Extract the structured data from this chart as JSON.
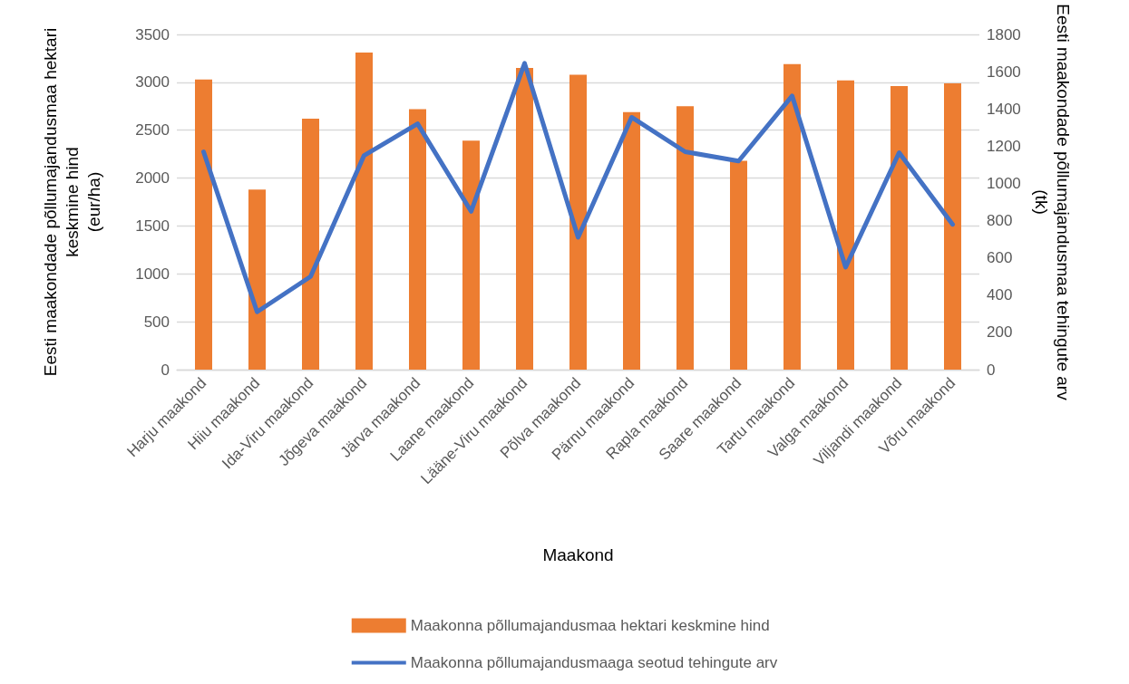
{
  "chart_data": {
    "type": "bar",
    "xlabel": "Maakond",
    "ylabel": "Eesti maakondade põllumajandusmaa hektari\nkeskmine hind\n(eur/ha)",
    "y2label": "Eesti maakondade põllumajandusmaa tehingute arv\n(tk)",
    "categories": [
      "Harju maakond",
      "Hiiu maakond",
      "Ida-Viru maakond",
      "Jõgeva maakond",
      "Järva maakond",
      "Laane maakond",
      "Lääne-Viru maakond",
      "Põlva maakond",
      "Pärnu maakond",
      "Rapla maakond",
      "Saare maakond",
      "Tartu maakond",
      "Valga maakond",
      "Viljandi maakond",
      "Võru maakond"
    ],
    "series": [
      {
        "name": "Maakonna põllumajandusmaa hektari keskmine hind",
        "color": "#ed7d31",
        "values": [
          3030,
          1880,
          2620,
          3310,
          2720,
          2390,
          3150,
          3080,
          2690,
          2750,
          2180,
          3190,
          3020,
          2960,
          2990
        ]
      },
      {
        "name": "Maakonna põllumajandusmaaga seotud tehingute arv",
        "type": "line",
        "axis": "y2",
        "color": "#4472c4",
        "values": [
          1170,
          310,
          500,
          1150,
          1320,
          850,
          1645,
          710,
          1355,
          1170,
          1120,
          1470,
          550,
          1165,
          780
        ]
      }
    ],
    "ylim": [
      0,
      3500
    ],
    "yticks": [
      0,
      500,
      1000,
      1500,
      2000,
      2500,
      3000,
      3500
    ],
    "y2lim": [
      0,
      1800
    ],
    "y2ticks": [
      0,
      200,
      400,
      600,
      800,
      1000,
      1200,
      1400,
      1600,
      1800
    ],
    "grid": "y",
    "legend": "bottom",
    "marker": "none"
  }
}
